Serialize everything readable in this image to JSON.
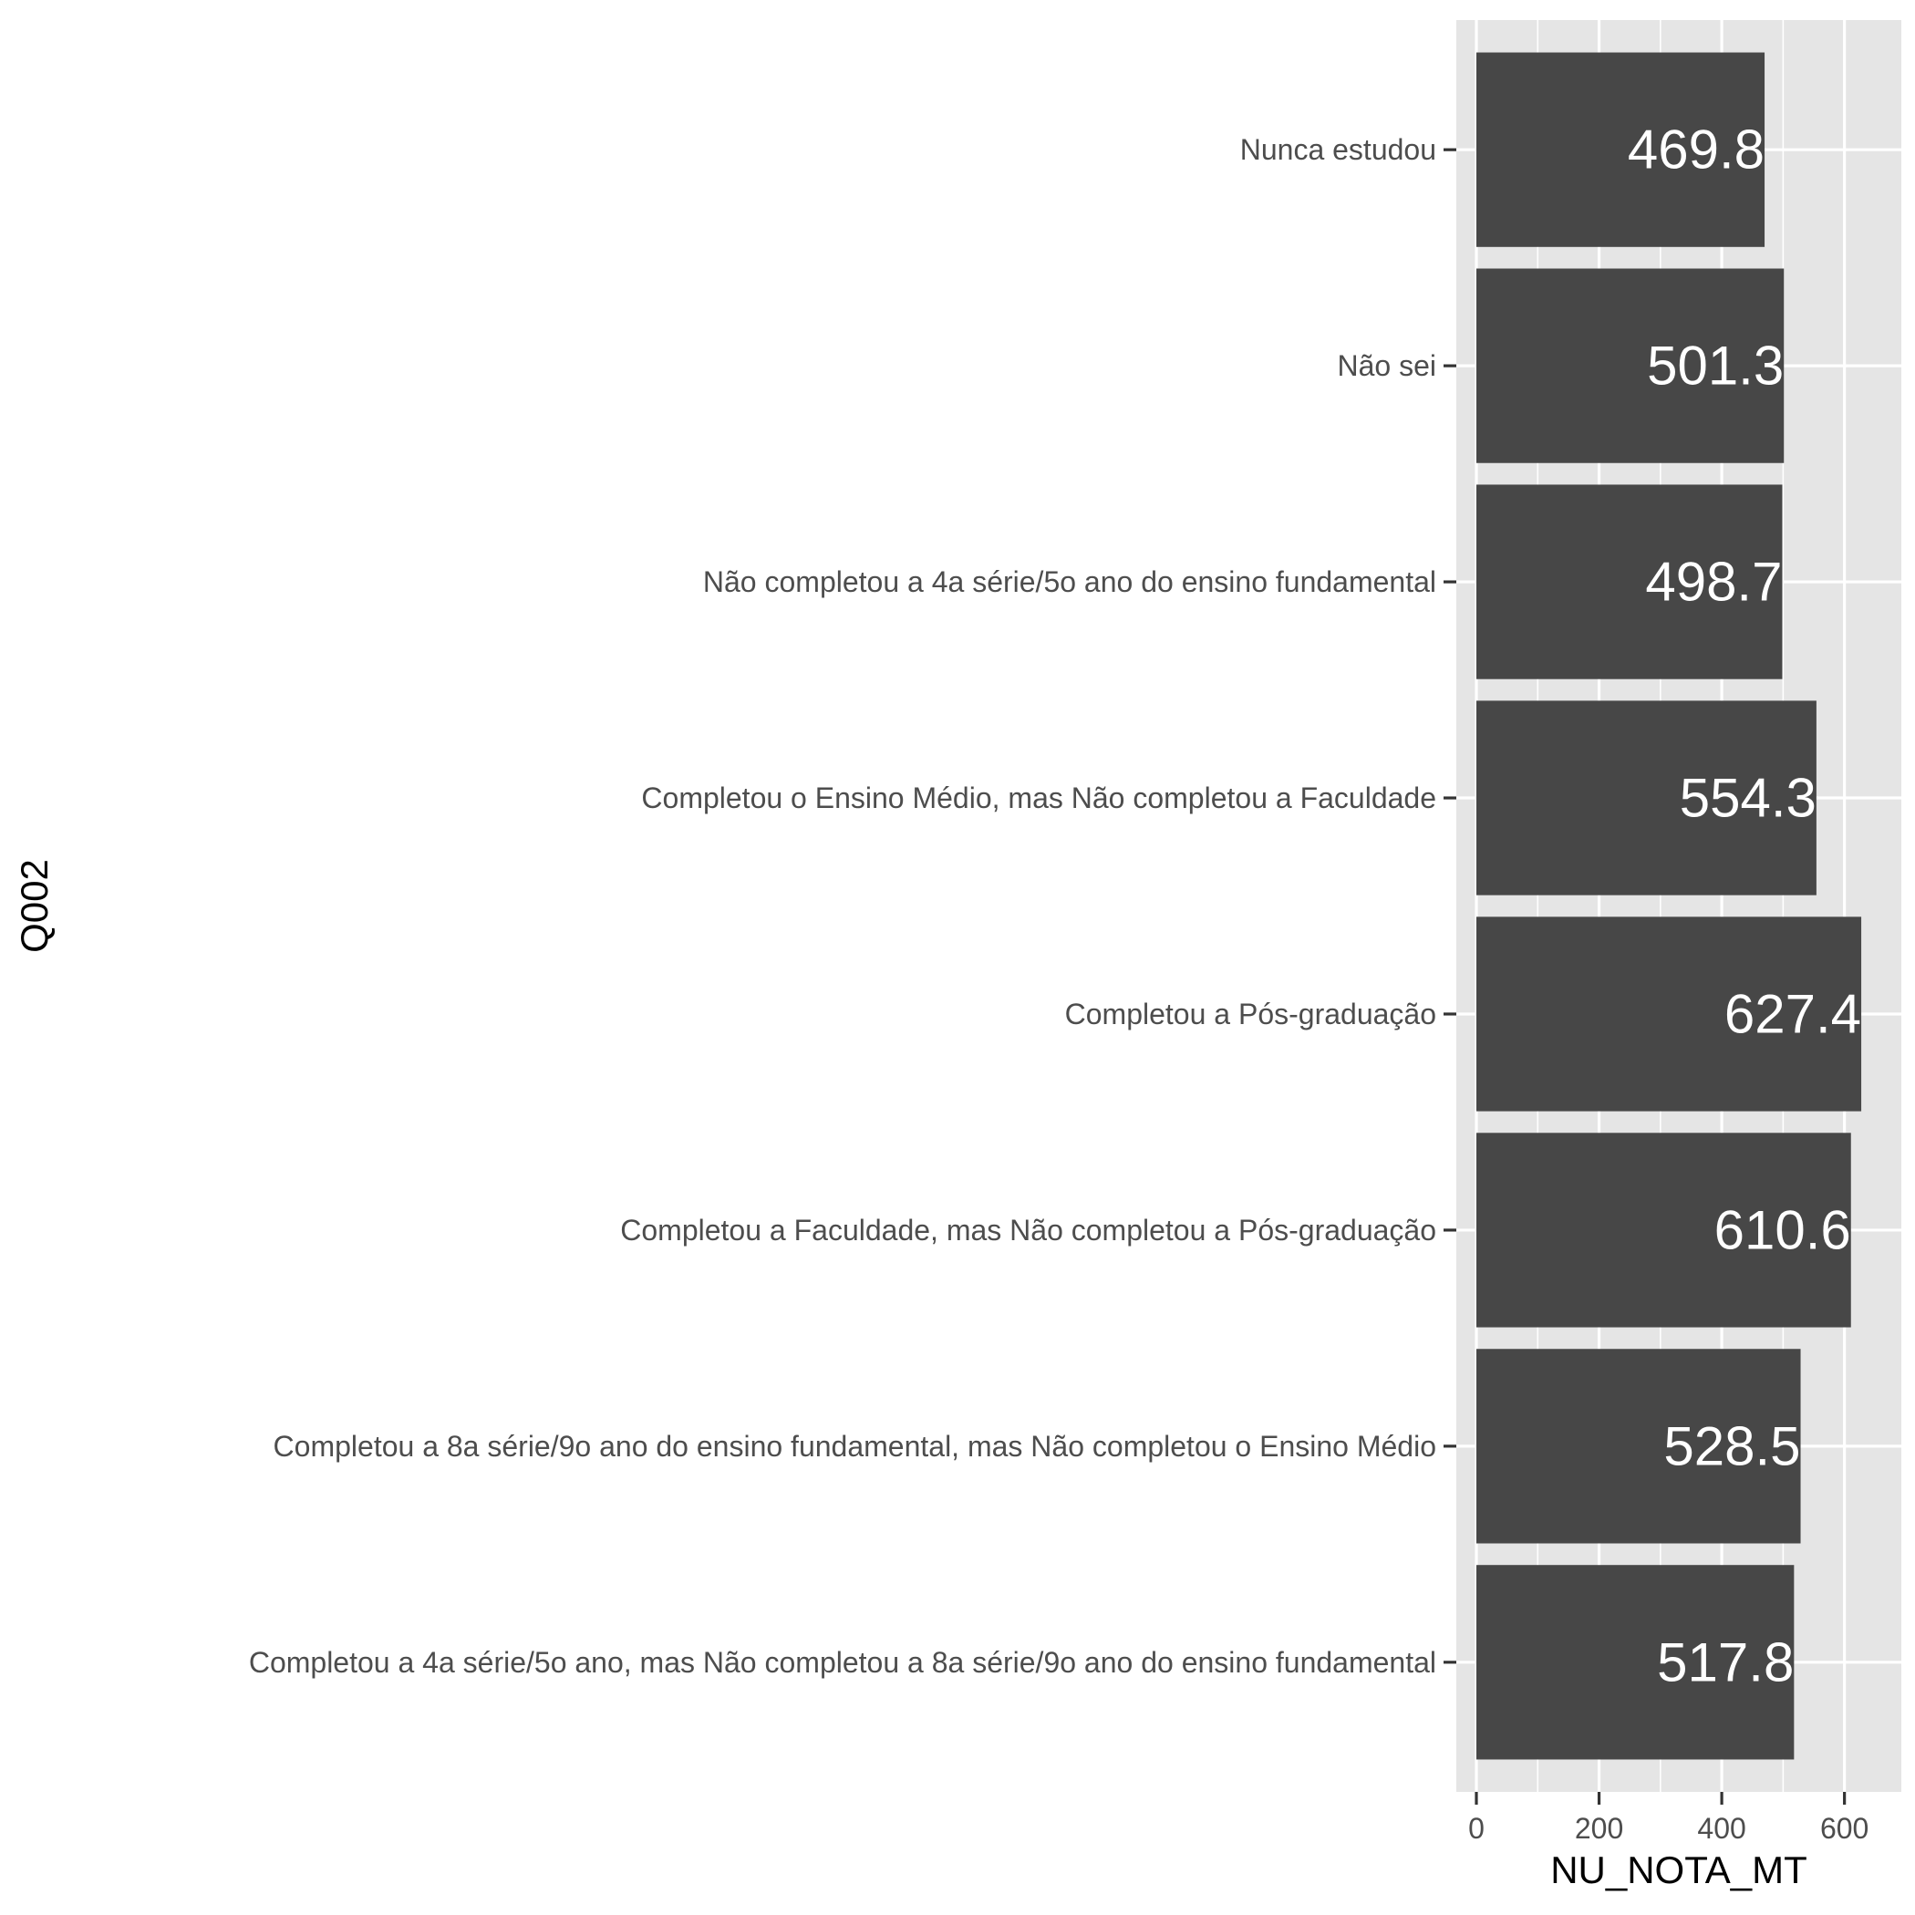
{
  "chart_data": {
    "type": "bar",
    "orientation": "horizontal",
    "categories": [
      "Nunca estudou",
      "Não sei",
      "Não completou a 4a série/5o ano do ensino fundamental",
      "Completou o Ensino Médio, mas Não completou a Faculdade",
      "Completou a Pós-graduação",
      "Completou a Faculdade, mas Não completou a Pós-graduação",
      "Completou a 8a série/9o ano do ensino fundamental, mas Não completou o Ensino Médio",
      "Completou a 4a série/5o ano, mas Não completou a 8a série/9o ano do ensino fundamental"
    ],
    "values": [
      469.8,
      501.3,
      498.7,
      554.3,
      627.4,
      610.6,
      528.5,
      517.8
    ],
    "data_labels": [
      "469.8",
      "501.3",
      "498.7",
      "554.3",
      "627.4",
      "610.6",
      "528.5",
      "517.8"
    ],
    "xlabel": "NU_NOTA_MT",
    "ylabel": "Q002",
    "xlim": [
      0,
      660
    ],
    "x_ticks": [
      0,
      200,
      400,
      600
    ],
    "x_tick_labels": [
      "0",
      "200",
      "400",
      "600"
    ],
    "grid": true,
    "legend": "none",
    "colors": {
      "bar": "#474747",
      "panel": "#e5e5e5",
      "grid": "#ffffff",
      "data_label": "#ffffff"
    }
  }
}
